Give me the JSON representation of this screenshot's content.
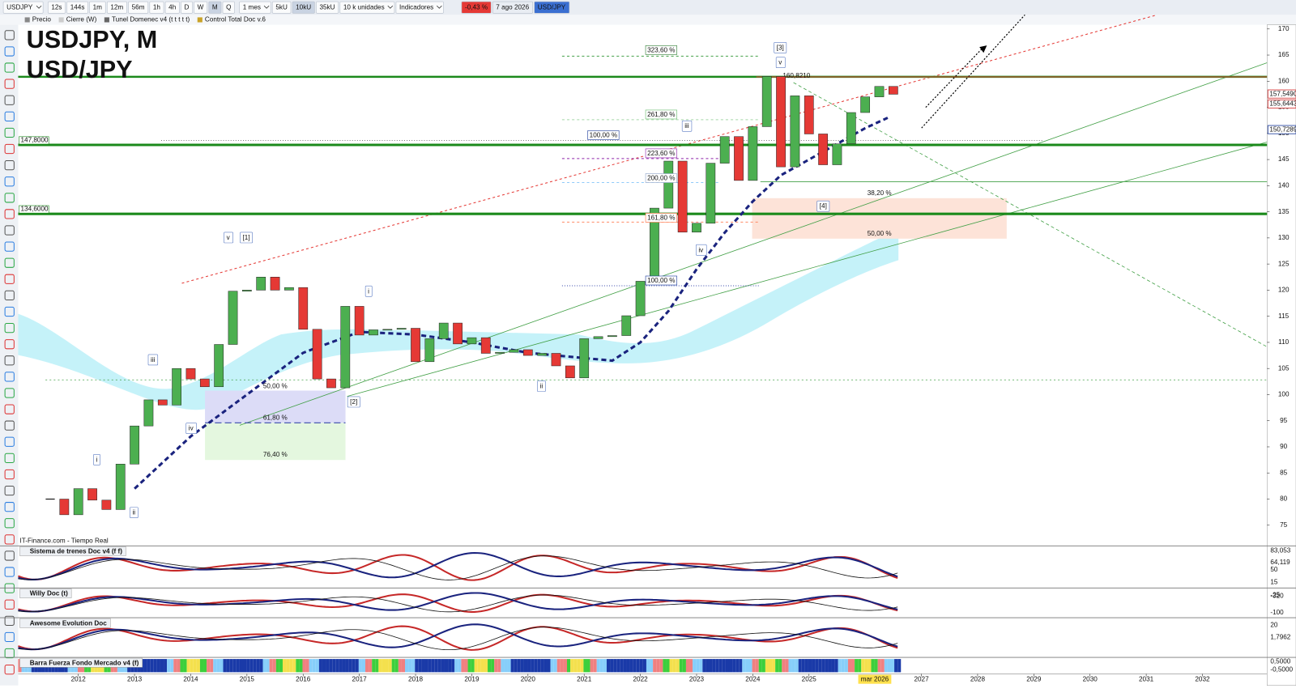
{
  "toolbar": {
    "symbol": "USDJPY",
    "intervals": [
      "12s",
      "144s",
      "1m",
      "12m",
      "56m",
      "1h",
      "4h",
      "D",
      "W",
      "M",
      "Q"
    ],
    "period": "1 mes",
    "units": [
      "5kU",
      "10kU",
      "35kU"
    ],
    "units_menu": "10 k unidades",
    "indicators": "Indicadores",
    "change": "-0,43 %",
    "date": "7 ago 2026",
    "pair": "USD/JPY"
  },
  "legend_row": [
    "Precio",
    "Cierre (W)",
    "Tunel Domenec v4 (t t t t t)",
    "Control Total Doc v.6"
  ],
  "chart": {
    "title": "USDJPY, M",
    "subtitle": "USD/JPY",
    "source": "IT-Finance.com - Tiempo Real",
    "xlim": [
      2010.93,
      2033.15
    ],
    "ylim": [
      71.2,
      170.8
    ],
    "yticks": [
      75,
      80,
      85,
      90,
      95,
      100,
      105,
      110,
      115,
      120,
      125,
      130,
      135,
      140,
      145,
      150,
      155,
      160,
      165,
      170
    ],
    "xticks": [
      2012,
      2013,
      2014,
      2015,
      2016,
      2017,
      2018,
      2019,
      2020,
      2021,
      2022,
      2023,
      2024,
      2025,
      2027,
      2028,
      2029,
      2030,
      2031,
      2032
    ],
    "cursor": {
      "value": 2026.17,
      "label": "mar 2026"
    },
    "price": {
      "x": [
        2011.5,
        2011.75,
        2012.0,
        2012.25,
        2012.5,
        2012.75,
        2013.0,
        2013.25,
        2013.5,
        2013.75,
        2014.0,
        2014.25,
        2014.5,
        2014.75,
        2015.0,
        2015.25,
        2015.5,
        2015.75,
        2016.0,
        2016.25,
        2016.5,
        2016.75,
        2017.0,
        2017.25,
        2017.5,
        2017.75,
        2018.0,
        2018.25,
        2018.5,
        2018.75,
        2019.0,
        2019.25,
        2019.5,
        2019.75,
        2020.0,
        2020.25,
        2020.5,
        2020.75,
        2021.0,
        2021.25,
        2021.5,
        2021.75,
        2022.0,
        2022.25,
        2022.5,
        2022.75,
        2023.0,
        2023.25,
        2023.5,
        2023.75,
        2024.0,
        2024.25,
        2024.5,
        2024.75,
        2025.0,
        2025.25,
        2025.5,
        2025.75,
        2026.0,
        2026.25,
        2026.5
      ],
      "values": [
        80,
        77,
        82,
        79.8,
        78,
        86.7,
        94,
        99,
        98,
        105,
        103,
        101.5,
        109.6,
        119.8,
        120,
        122.5,
        120,
        120.5,
        112.5,
        103,
        101.3,
        116.9,
        111.4,
        112.4,
        112.5,
        112.7,
        106.3,
        110.7,
        113.7,
        109.7,
        110.9,
        107.9,
        108.1,
        108.6,
        107.5,
        107.9,
        105.5,
        103.2,
        110.7,
        111.1,
        111.3,
        115.1,
        121.7,
        135.7,
        144.7,
        131.1,
        132.8,
        144.3,
        149.4,
        141,
        151.3,
        160.9,
        143.6,
        157.2,
        149.9,
        144,
        148,
        154,
        157,
        159,
        157.5
      ]
    },
    "slow_ma": {
      "color": "#1a237e",
      "x": [
        2013.0,
        2014.0,
        2015.0,
        2016.0,
        2017.0,
        2018.0,
        2019.0,
        2020.0,
        2021.0,
        2021.5,
        2022.0,
        2022.5,
        2023.0,
        2023.5,
        2024.0,
        2024.5,
        2025.0,
        2025.5,
        2026.0,
        2026.4
      ],
      "values": [
        82,
        92,
        100,
        108,
        112,
        111.5,
        110,
        108,
        107,
        106.5,
        110,
        116,
        124,
        131,
        137,
        142,
        145,
        148,
        151,
        153
      ]
    },
    "levels": [
      {
        "value": 147.8,
        "label": "147,8000"
      },
      {
        "value": 134.6,
        "label": "134,6000"
      },
      {
        "value": 160.821,
        "label": "160,8210"
      }
    ],
    "price_labels": [
      {
        "value": 157.549,
        "label": "157,5490",
        "color": "#d32f2f"
      },
      {
        "value": 155.6443,
        "label": "155,6443",
        "color": "#d32f2f"
      },
      {
        "value": 150.7289,
        "label": "150,7289",
        "color": "#1a3a9a"
      }
    ],
    "fib_labels": [
      "323,60 %",
      "261,80 %",
      "100,00 %",
      "223,60 %",
      "200,00 %",
      "161,80 %",
      "100,00 %",
      "38,20 %",
      "50,00 %",
      "50,00 %",
      "61,80 %",
      "76,40 %"
    ],
    "wave_labels": [
      "[3]",
      "v",
      "iii",
      "iv",
      "[4]",
      "v",
      "[1]",
      "i",
      "iii",
      "iv",
      "i",
      "ii",
      "[2]",
      "ii"
    ]
  },
  "panels": [
    {
      "title": "Sistema de trenes Doc v4 (f f)",
      "labels": [
        "83,053",
        "64,119",
        "50",
        "15"
      ]
    },
    {
      "title": "Willy Doc (t)",
      "labels": [
        "-25",
        "-320",
        "-100"
      ]
    },
    {
      "title": "Awesome Evolution Doc",
      "labels": [
        "20",
        "1,7962"
      ]
    },
    {
      "title": "Barra Fuerza Fondo Mercado v4 (f)",
      "labels": [
        "0,5000",
        "-0,5000"
      ]
    }
  ]
}
